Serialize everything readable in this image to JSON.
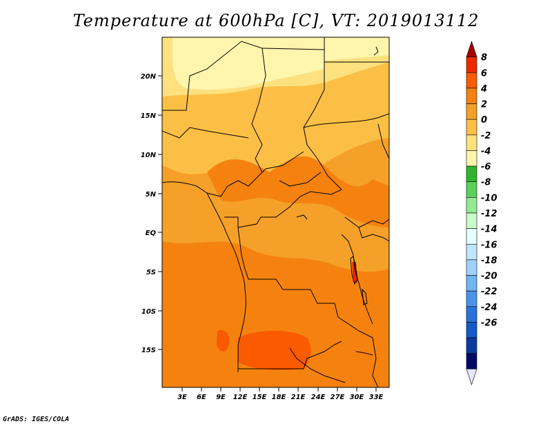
{
  "title": "Temperature at 600hPa [C], VT: 2019013112",
  "credit": "GrADS: IGES/COLA",
  "map": {
    "lat_ticks": [
      "20N",
      "15N",
      "10N",
      "5N",
      "EQ",
      "5S",
      "10S",
      "15S"
    ],
    "lon_ticks": [
      "3E",
      "6E",
      "9E",
      "12E",
      "15E",
      "18E",
      "21E",
      "24E",
      "27E",
      "30E",
      "33E"
    ]
  },
  "colorbar": {
    "labels": [
      "8",
      "6",
      "4",
      "2",
      "0",
      "-2",
      "-4",
      "-6",
      "-8",
      "-10",
      "-12",
      "-14",
      "-16",
      "-18",
      "-20",
      "-22",
      "-24",
      "-26"
    ],
    "colors": [
      "#a50000",
      "#f02800",
      "#fa5a00",
      "#f5820f",
      "#f5a028",
      "#fcbf45",
      "#fde17f",
      "#fff5ad",
      "#2eb52e",
      "#5ad25a",
      "#91eb91",
      "#c9fac9",
      "#e6ffff",
      "#bfe6fd",
      "#9fd1fb",
      "#6fb4f3",
      "#4b93ea",
      "#2a73dc",
      "#155ac8",
      "#0a3ca0",
      "#000a64",
      "#e6e6ff"
    ]
  }
}
